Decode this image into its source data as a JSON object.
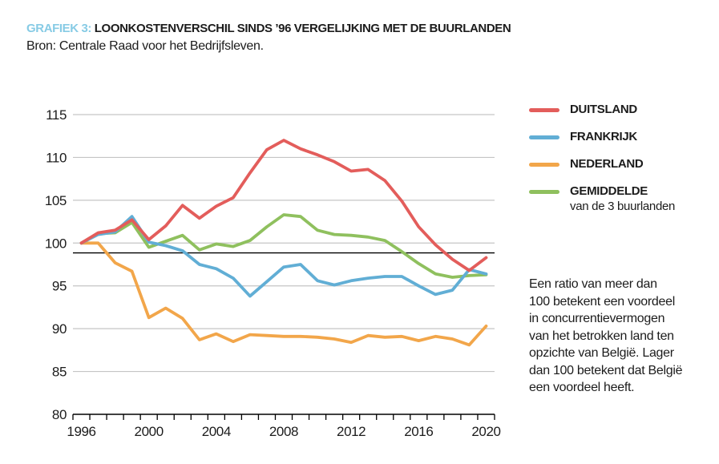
{
  "header": {
    "tag": "GRAFIEK 3:",
    "title": "LOONKOSTENVERSCHIL SINDS ’96 VERGELIJKING MET DE BUURLANDEN",
    "source": "Bron: Centrale Raad voor het Bedrijfsleven."
  },
  "legend": {
    "items": [
      {
        "label": "DUITSLAND",
        "sublabel": "",
        "color": "#e35d5b"
      },
      {
        "label": "FRANKRIJK",
        "sublabel": "",
        "color": "#61aed5"
      },
      {
        "label": "NEDERLAND",
        "sublabel": "",
        "color": "#f2a64a"
      },
      {
        "label": "GEMIDDELDE",
        "sublabel": "van de 3 buurlanden",
        "color": "#8fc05e"
      }
    ]
  },
  "note": "Een ratio van meer dan\n100 betekent een voordeel\nin concurrentievermogen\nvan het betrokken land ten\nopzichte van België. Lager\ndan 100 betekent dat België\neen voordeel heeft.",
  "colors": {
    "grid": "#c5c5c5",
    "axis": "#000000",
    "reference": "#000000",
    "text": "#1c1c1c",
    "tag_blue": "#87cbe5"
  },
  "chart_data": {
    "type": "line",
    "title": "Loonkostenverschil sinds '96 vergelijking met de buurlanden",
    "x": [
      1996,
      1997,
      1998,
      1999,
      2000,
      2001,
      2002,
      2003,
      2004,
      2005,
      2006,
      2007,
      2008,
      2009,
      2010,
      2011,
      2012,
      2013,
      2014,
      2015,
      2016,
      2017,
      2018,
      2019,
      2020
    ],
    "x_tick_labels": [
      1996,
      2000,
      2004,
      2008,
      2012,
      2016,
      2020
    ],
    "y_ticks": [
      80,
      85,
      90,
      95,
      100,
      105,
      110,
      115
    ],
    "xlim": [
      1996,
      2020
    ],
    "ylim": [
      80,
      115
    ],
    "grid": "horizontal",
    "legend_position": "right",
    "reference_line": 98.85,
    "series": [
      {
        "name": "DUITSLAND",
        "color": "#e35d5b",
        "values": [
          100,
          101.2,
          101.5,
          102.7,
          100.4,
          102.0,
          104.4,
          102.9,
          104.3,
          105.3,
          108.2,
          110.9,
          112.0,
          111.0,
          110.3,
          109.5,
          108.4,
          108.6,
          107.3,
          104.9,
          101.9,
          99.8,
          98.1,
          96.8,
          98.3
        ]
      },
      {
        "name": "FRANKRIJK",
        "color": "#61aed5",
        "values": [
          100,
          101.0,
          101.3,
          103.1,
          100.1,
          99.7,
          99.1,
          97.5,
          97.0,
          95.9,
          93.8,
          95.5,
          97.2,
          97.5,
          95.6,
          95.1,
          95.6,
          95.9,
          96.1,
          96.1,
          95.0,
          94.0,
          94.5,
          96.9,
          96.4
        ]
      },
      {
        "name": "NEDERLAND",
        "color": "#f2a64a",
        "values": [
          100,
          100.0,
          97.7,
          96.7,
          91.3,
          92.4,
          91.2,
          88.7,
          89.4,
          88.5,
          89.3,
          89.2,
          89.1,
          89.1,
          89.0,
          88.8,
          88.4,
          89.2,
          89.0,
          89.1,
          88.6,
          89.1,
          88.8,
          88.1,
          90.3
        ]
      },
      {
        "name": "GEMIDDELDE van de 3 buurlanden",
        "color": "#8fc05e",
        "values": [
          100,
          101.1,
          101.2,
          102.4,
          99.5,
          100.2,
          100.9,
          99.2,
          99.9,
          99.6,
          100.3,
          101.9,
          103.3,
          103.1,
          101.5,
          101.0,
          100.9,
          100.7,
          100.3,
          99.0,
          97.6,
          96.4,
          96.0,
          96.2,
          96.3
        ]
      }
    ]
  }
}
